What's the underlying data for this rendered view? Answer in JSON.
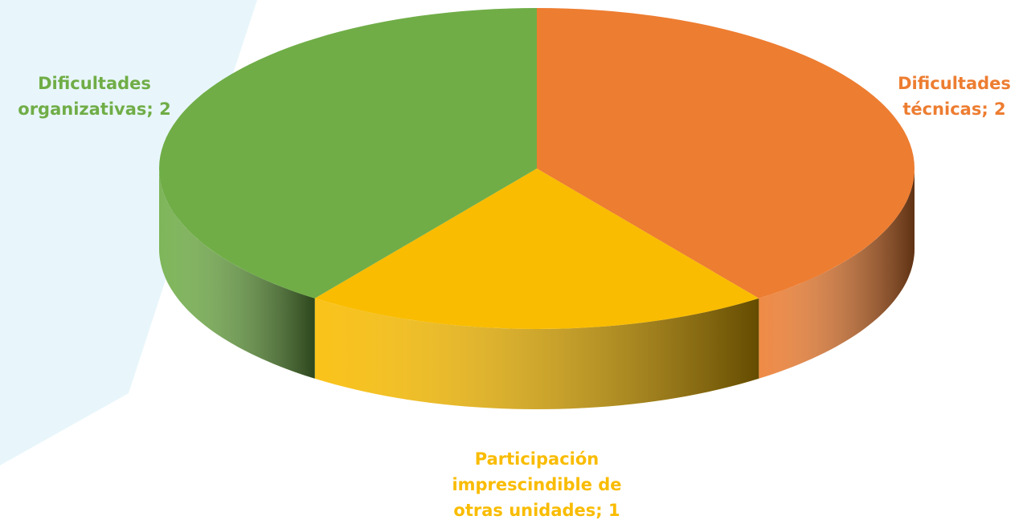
{
  "chart_data": {
    "type": "pie",
    "value_labels": [
      "Dificultades técnicas; 2",
      "Participación imprescindible de otras unidades; 1",
      "Dificultades organizativas; 2"
    ],
    "values": [
      2,
      1,
      2
    ],
    "colors": [
      "#ed7d31",
      "#f9bc00",
      "#70ad47"
    ]
  }
}
